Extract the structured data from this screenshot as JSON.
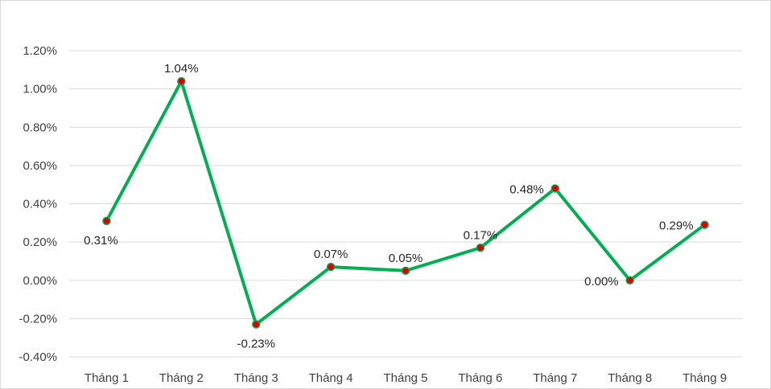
{
  "chart_data": {
    "type": "line",
    "categories": [
      "Tháng 1",
      "Tháng 2",
      "Tháng 3",
      "Tháng 4",
      "Tháng 5",
      "Tháng 6",
      "Tháng 7",
      "Tháng 8",
      "Tháng 9"
    ],
    "series": [
      {
        "values": [
          0.31,
          1.04,
          -0.23,
          0.07,
          0.05,
          0.17,
          0.48,
          0.0,
          0.29
        ],
        "labels": [
          "0.31%",
          "1.04%",
          "-0.23%",
          "0.07%",
          "0.05%",
          "0.17%",
          "0.48%",
          "0.00%",
          "0.29%"
        ],
        "color": "#00b050",
        "marker_color": "#e00000"
      }
    ],
    "y_ticks": [
      "1.20%",
      "1.00%",
      "0.80%",
      "0.60%",
      "0.40%",
      "0.20%",
      "0.00%",
      "-0.20%",
      "-0.40%"
    ],
    "ylim": [
      -0.4,
      1.2
    ],
    "grid": true,
    "legend": "none",
    "title": "",
    "xlabel": "",
    "ylabel": ""
  }
}
